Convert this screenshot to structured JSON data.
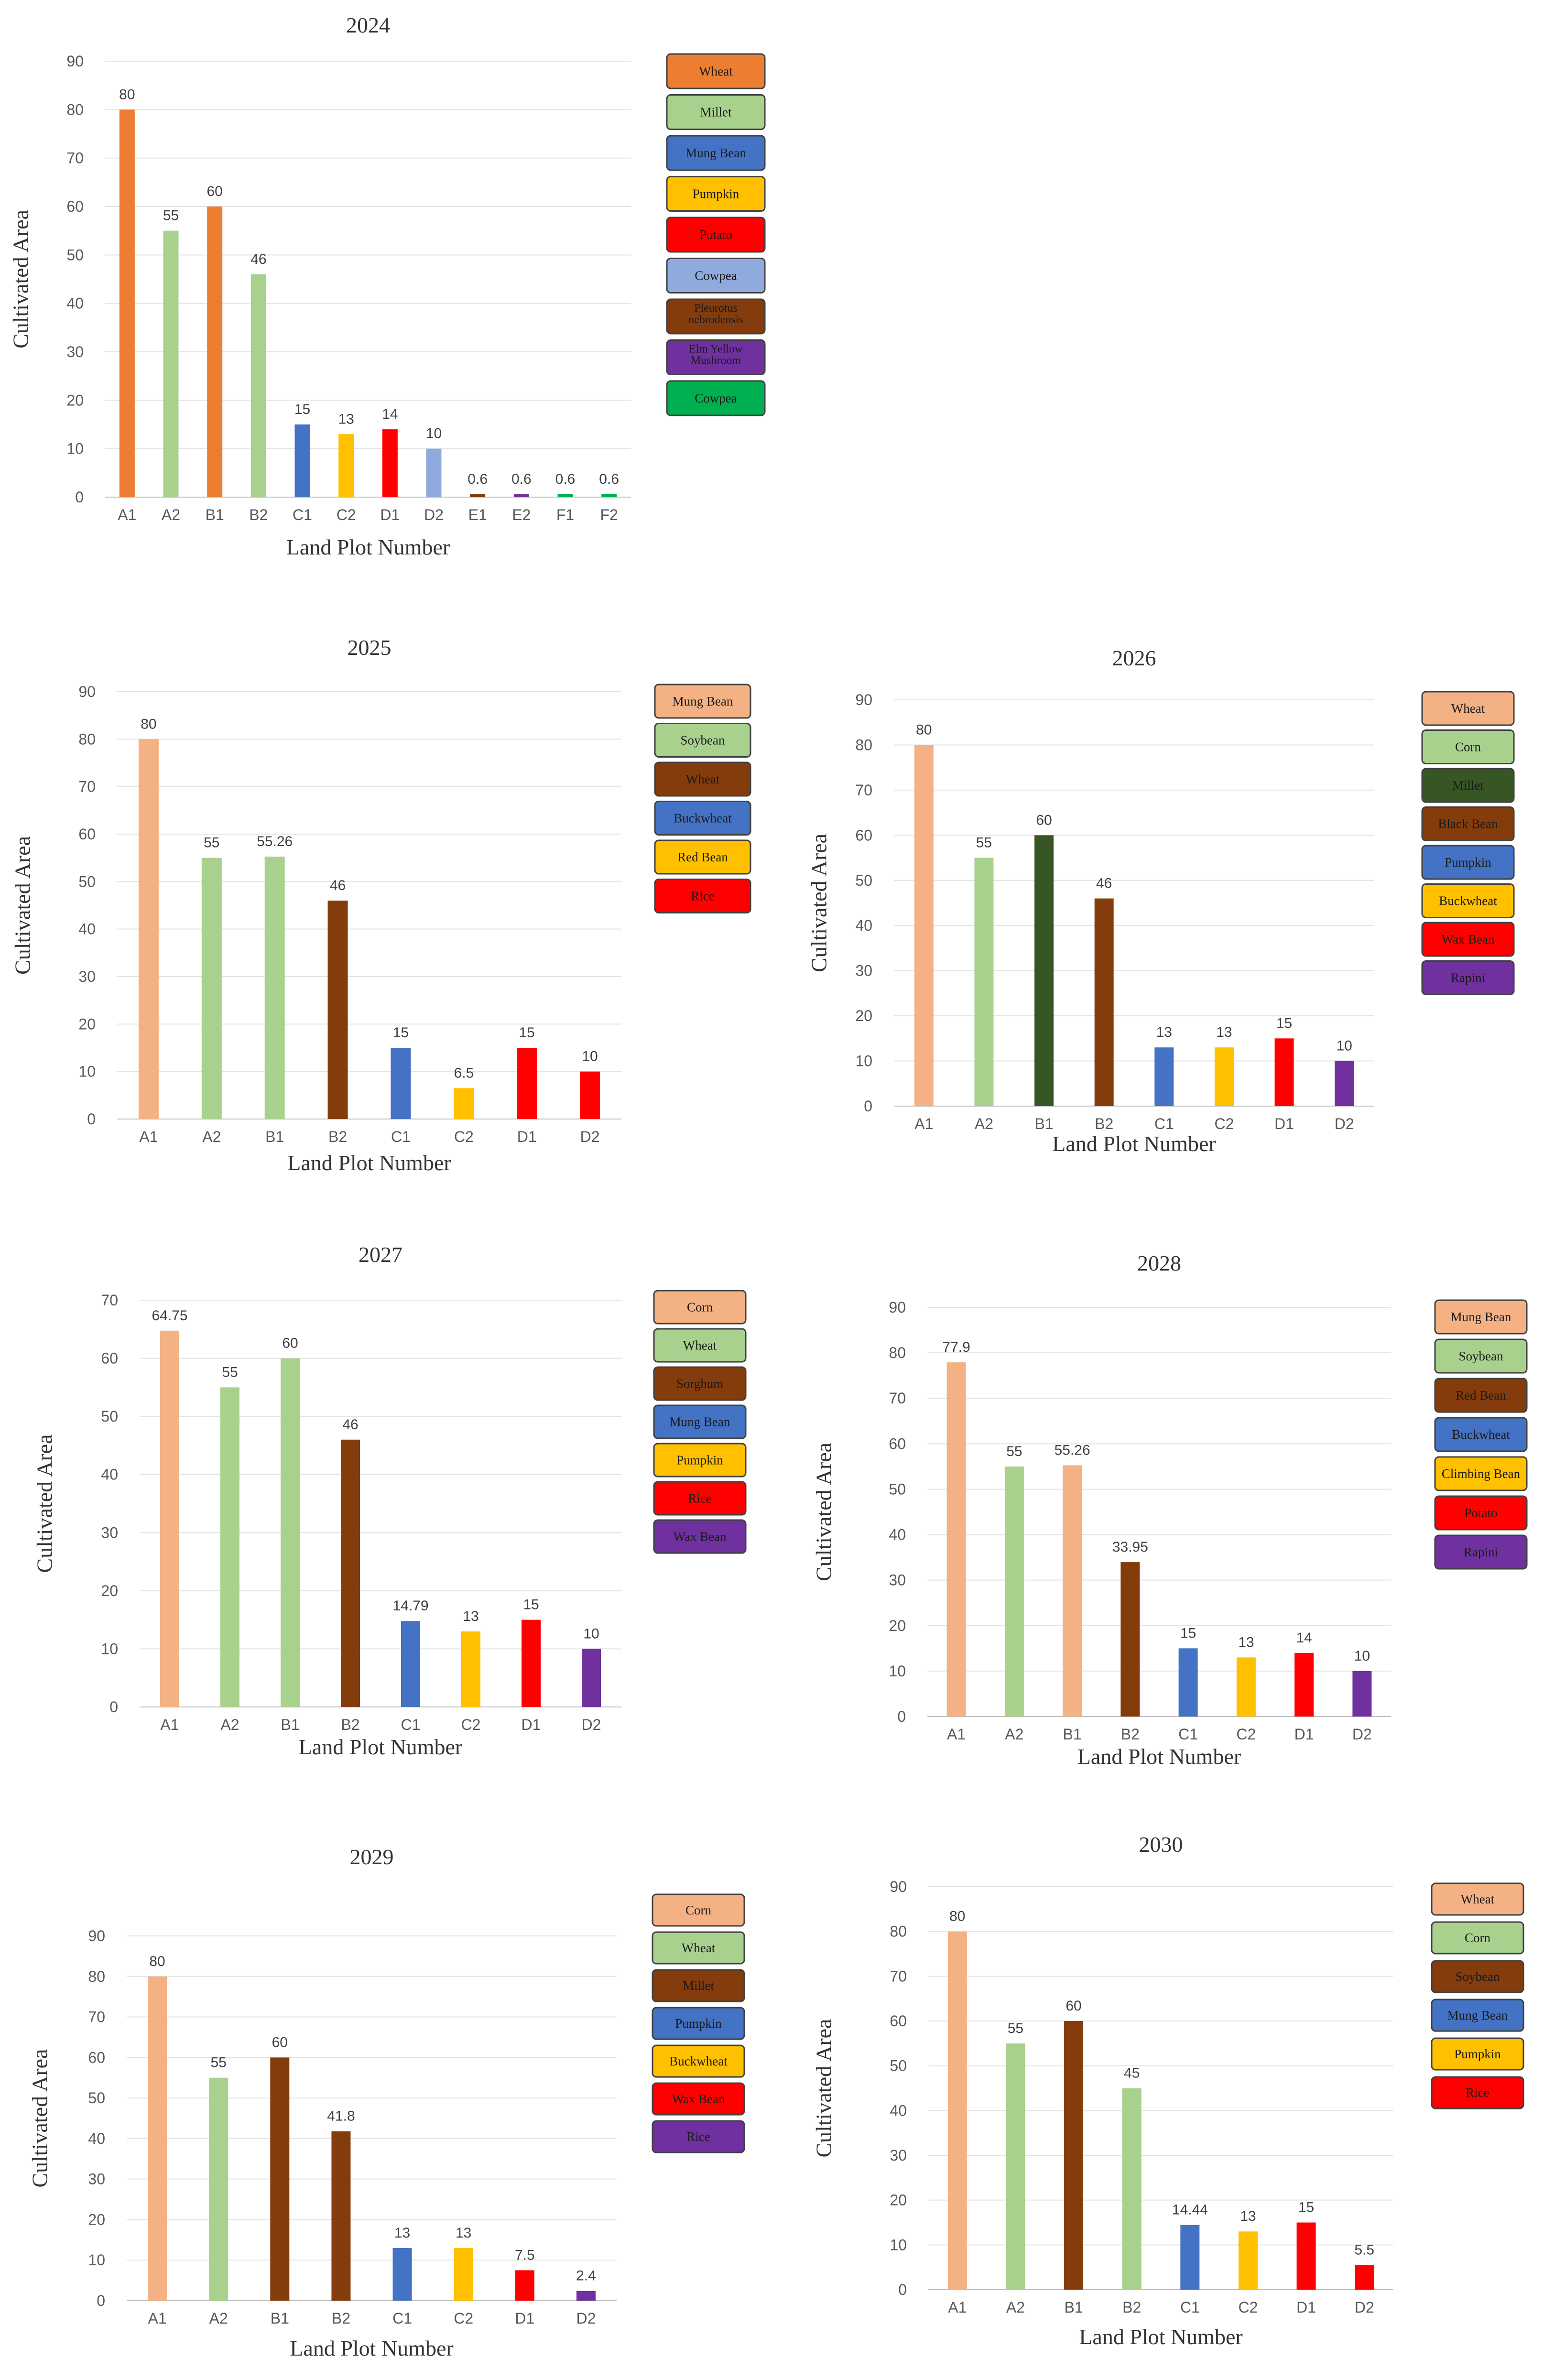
{
  "chart_data": [
    {
      "type": "bar",
      "title": "2024",
      "xlabel": "Land Plot Number",
      "ylabel": "Cultivated Area",
      "ylim": [
        0,
        90
      ],
      "yticks": [
        0,
        10,
        20,
        30,
        40,
        50,
        60,
        70,
        80,
        90
      ],
      "grid": true,
      "legend_position": "right",
      "categories": [
        "A1",
        "A2",
        "B1",
        "B2",
        "C1",
        "C2",
        "D1",
        "D2",
        "E1",
        "E2",
        "F1",
        "F2"
      ],
      "values": [
        80,
        55,
        60,
        46,
        15,
        13,
        14,
        10,
        0.6,
        0.6,
        0.6,
        0.6
      ],
      "data_labels": [
        "80",
        "55",
        "60",
        "46",
        "15",
        "13",
        "14",
        "10",
        "0.6",
        "0.6",
        "0.6",
        "0.6"
      ],
      "bar_colors": [
        "#ED7D31",
        "#A9D18E",
        "#ED7D31",
        "#A9D18E",
        "#4472C4",
        "#FFC000",
        "#FF0000",
        "#8FAADC",
        "#843C0C",
        "#7030A0",
        "#00B050",
        "#00B050"
      ],
      "legend": [
        {
          "label": "Wheat",
          "color": "#ED7D31"
        },
        {
          "label": "Millet",
          "color": "#A9D18E"
        },
        {
          "label": "Mung Bean",
          "color": "#4472C4"
        },
        {
          "label": "Pumpkin",
          "color": "#FFC000"
        },
        {
          "label": "Potato",
          "color": "#FF0000"
        },
        {
          "label": "Cowpea",
          "color": "#8FAADC"
        },
        {
          "label": "Pleurotus nebrodensis",
          "color": "#843C0C"
        },
        {
          "label": "Elm Yellow Mushroom",
          "color": "#7030A0"
        },
        {
          "label": "Cowpea",
          "color": "#00B050"
        }
      ]
    },
    {
      "type": "bar",
      "title": "2025",
      "xlabel": "Land Plot Number",
      "ylabel": "Cultivated Area",
      "ylim": [
        0,
        90
      ],
      "yticks": [
        0,
        10,
        20,
        30,
        40,
        50,
        60,
        70,
        80,
        90
      ],
      "grid": true,
      "legend_position": "right",
      "categories": [
        "A1",
        "A2",
        "B1",
        "B2",
        "C1",
        "C2",
        "D1",
        "D2"
      ],
      "values": [
        80,
        55,
        55.26,
        46,
        15,
        6.5,
        15,
        10
      ],
      "data_labels": [
        "80",
        "55",
        "55.26",
        "46",
        "15",
        "6.5",
        "15",
        "10"
      ],
      "bar_colors": [
        "#F4B183",
        "#A9D18E",
        "#A9D18E",
        "#843C0C",
        "#4472C4",
        "#FFC000",
        "#FF0000",
        "#FF0000"
      ],
      "legend": [
        {
          "label": "Mung Bean",
          "color": "#F4B183"
        },
        {
          "label": "Soybean",
          "color": "#A9D18E"
        },
        {
          "label": "Wheat",
          "color": "#843C0C"
        },
        {
          "label": "Buckwheat",
          "color": "#4472C4"
        },
        {
          "label": "Red Bean",
          "color": "#FFC000"
        },
        {
          "label": "Rice",
          "color": "#FF0000"
        }
      ]
    },
    {
      "type": "bar",
      "title": "2026",
      "xlabel": "Land Plot Number",
      "ylabel": "Cultivated Area",
      "ylim": [
        0,
        90
      ],
      "yticks": [
        0,
        10,
        20,
        30,
        40,
        50,
        60,
        70,
        80,
        90
      ],
      "grid": true,
      "legend_position": "right",
      "categories": [
        "A1",
        "A2",
        "B1",
        "B2",
        "C1",
        "C2",
        "D1",
        "D2"
      ],
      "values": [
        80,
        55,
        60,
        46,
        13,
        13,
        15,
        10
      ],
      "data_labels": [
        "80",
        "55",
        "60",
        "46",
        "13",
        "13",
        "15",
        "10"
      ],
      "bar_colors": [
        "#F4B183",
        "#A9D18E",
        "#375623",
        "#843C0C",
        "#4472C4",
        "#FFC000",
        "#FF0000",
        "#7030A0"
      ],
      "legend": [
        {
          "label": "Wheat",
          "color": "#F4B183"
        },
        {
          "label": "Corn",
          "color": "#A9D18E"
        },
        {
          "label": "Millet",
          "color": "#375623"
        },
        {
          "label": "Black Bean",
          "color": "#843C0C"
        },
        {
          "label": "Pumpkin",
          "color": "#4472C4"
        },
        {
          "label": "Buckwheat",
          "color": "#FFC000"
        },
        {
          "label": "Wax Bean",
          "color": "#FF0000"
        },
        {
          "label": "Rapini",
          "color": "#7030A0"
        }
      ]
    },
    {
      "type": "bar",
      "title": "2027",
      "xlabel": "Land Plot Number",
      "ylabel": "Cultivated Area",
      "ylim": [
        0,
        70
      ],
      "yticks": [
        0,
        10,
        20,
        30,
        40,
        50,
        60,
        70
      ],
      "grid": true,
      "legend_position": "right",
      "categories": [
        "A1",
        "A2",
        "B1",
        "B2",
        "C1",
        "C2",
        "D1",
        "D2"
      ],
      "values": [
        64.75,
        55,
        60,
        46,
        14.79,
        13,
        15,
        10
      ],
      "data_labels": [
        "64.75",
        "55",
        "60",
        "46",
        "14.79",
        "13",
        "15",
        "10"
      ],
      "bar_colors": [
        "#F4B183",
        "#A9D18E",
        "#A9D18E",
        "#843C0C",
        "#4472C4",
        "#FFC000",
        "#FF0000",
        "#7030A0"
      ],
      "legend": [
        {
          "label": "Corn",
          "color": "#F4B183"
        },
        {
          "label": "Wheat",
          "color": "#A9D18E"
        },
        {
          "label": "Sorghum",
          "color": "#843C0C"
        },
        {
          "label": "Mung Bean",
          "color": "#4472C4"
        },
        {
          "label": "Pumpkin",
          "color": "#FFC000"
        },
        {
          "label": "Rice",
          "color": "#FF0000"
        },
        {
          "label": "Wax Bean",
          "color": "#7030A0"
        }
      ]
    },
    {
      "type": "bar",
      "title": "2028",
      "xlabel": "Land Plot Number",
      "ylabel": "Cultivated Area",
      "ylim": [
        0,
        90
      ],
      "yticks": [
        0,
        10,
        20,
        30,
        40,
        50,
        60,
        70,
        80,
        90
      ],
      "grid": true,
      "legend_position": "right",
      "categories": [
        "A1",
        "A2",
        "B1",
        "B2",
        "C1",
        "C2",
        "D1",
        "D2"
      ],
      "values": [
        77.9,
        55,
        55.26,
        33.95,
        15,
        13,
        14,
        10
      ],
      "data_labels": [
        "77.9",
        "55",
        "55.26",
        "33.95",
        "15",
        "13",
        "14",
        "10"
      ],
      "bar_colors": [
        "#F4B183",
        "#A9D18E",
        "#F4B183",
        "#843C0C",
        "#4472C4",
        "#FFC000",
        "#FF0000",
        "#7030A0"
      ],
      "legend": [
        {
          "label": "Mung Bean",
          "color": "#F4B183"
        },
        {
          "label": "Soybean",
          "color": "#A9D18E"
        },
        {
          "label": "Red Bean",
          "color": "#843C0C"
        },
        {
          "label": "Buckwheat",
          "color": "#4472C4"
        },
        {
          "label": "Climbing Bean",
          "color": "#FFC000"
        },
        {
          "label": "Potato",
          "color": "#FF0000"
        },
        {
          "label": "Rapini",
          "color": "#7030A0"
        }
      ]
    },
    {
      "type": "bar",
      "title": "2029",
      "xlabel": "Land Plot Number",
      "ylabel": "Cultivated Area",
      "ylim": [
        0,
        90
      ],
      "yticks": [
        0,
        10,
        20,
        30,
        40,
        50,
        60,
        70,
        80,
        90
      ],
      "grid": true,
      "legend_position": "right",
      "categories": [
        "A1",
        "A2",
        "B1",
        "B2",
        "C1",
        "C2",
        "D1",
        "D2"
      ],
      "values": [
        80,
        55,
        60,
        41.8,
        13,
        13,
        7.5,
        2.4
      ],
      "data_labels": [
        "80",
        "55",
        "60",
        "41.8",
        "13",
        "13",
        "7.5",
        "2.4"
      ],
      "bar_colors": [
        "#F4B183",
        "#A9D18E",
        "#843C0C",
        "#843C0C",
        "#4472C4",
        "#FFC000",
        "#FF0000",
        "#7030A0"
      ],
      "legend": [
        {
          "label": "Corn",
          "color": "#F4B183"
        },
        {
          "label": "Wheat",
          "color": "#A9D18E"
        },
        {
          "label": "Millet",
          "color": "#843C0C"
        },
        {
          "label": "Pumpkin",
          "color": "#4472C4"
        },
        {
          "label": "Buckwheat",
          "color": "#FFC000"
        },
        {
          "label": "Wax Bean",
          "color": "#FF0000"
        },
        {
          "label": "Rice",
          "color": "#7030A0"
        }
      ]
    },
    {
      "type": "bar",
      "title": "2030",
      "xlabel": "Land Plot Number",
      "ylabel": "Cultivated Area",
      "ylim": [
        0,
        90
      ],
      "yticks": [
        0,
        10,
        20,
        30,
        40,
        50,
        60,
        70,
        80,
        90
      ],
      "grid": true,
      "legend_position": "right",
      "categories": [
        "A1",
        "A2",
        "B1",
        "B2",
        "C1",
        "C2",
        "D1",
        "D2"
      ],
      "values": [
        80,
        55,
        60,
        45,
        14.44,
        13,
        15,
        5.5
      ],
      "data_labels": [
        "80",
        "55",
        "60",
        "45",
        "14.44",
        "13",
        "15",
        "5.5"
      ],
      "bar_colors": [
        "#F4B183",
        "#A9D18E",
        "#843C0C",
        "#A9D18E",
        "#4472C4",
        "#FFC000",
        "#FF0000",
        "#FF0000"
      ],
      "legend": [
        {
          "label": "Wheat",
          "color": "#F4B183"
        },
        {
          "label": "Corn",
          "color": "#A9D18E"
        },
        {
          "label": "Soybean",
          "color": "#843C0C"
        },
        {
          "label": "Mung Bean",
          "color": "#4472C4"
        },
        {
          "label": "Pumpkin",
          "color": "#FFC000"
        },
        {
          "label": "Rice",
          "color": "#FF0000"
        }
      ]
    }
  ]
}
